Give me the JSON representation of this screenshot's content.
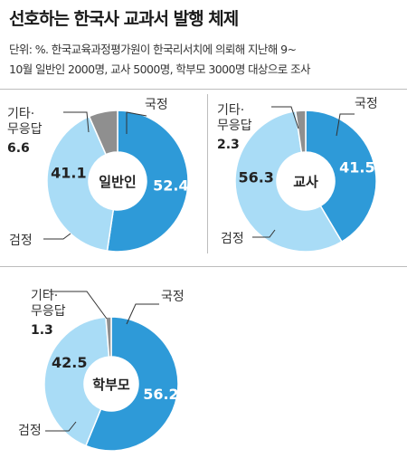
{
  "title": "선호하는 한국사 교과서 발행 체제",
  "subtitle_lines": [
    "단위: %. 한국교육과정평가원이 한국리서치에 의뢰해 지난해 9~",
    "10월 일반인 2000명, 교사 5000명, 학부모 3000명 대상으로 조사"
  ],
  "colors": {
    "national": "#2e9ad8",
    "approved": "#a9dcf6",
    "other": "#8f8f8f",
    "divider": "#bdbdbd"
  },
  "chart_data": [
    {
      "type": "pie",
      "center_label": "일반인",
      "segments": [
        {
          "label": "국정",
          "value": 52.4
        },
        {
          "label": "검정",
          "value": 41.1
        },
        {
          "label": "기타·무응답",
          "value": 6.6
        }
      ]
    },
    {
      "type": "pie",
      "center_label": "교사",
      "segments": [
        {
          "label": "국정",
          "value": 41.5
        },
        {
          "label": "검정",
          "value": 56.3
        },
        {
          "label": "기타·무응답",
          "value": 2.3
        }
      ]
    },
    {
      "type": "pie",
      "center_label": "학부모",
      "segments": [
        {
          "label": "국정",
          "value": 56.2
        },
        {
          "label": "검정",
          "value": 42.5
        },
        {
          "label": "기타·무응답",
          "value": 1.3
        }
      ]
    }
  ],
  "labels": {
    "national": "국정",
    "approved": "검정",
    "other_line1": "기타·",
    "other_line2": "무응답"
  }
}
